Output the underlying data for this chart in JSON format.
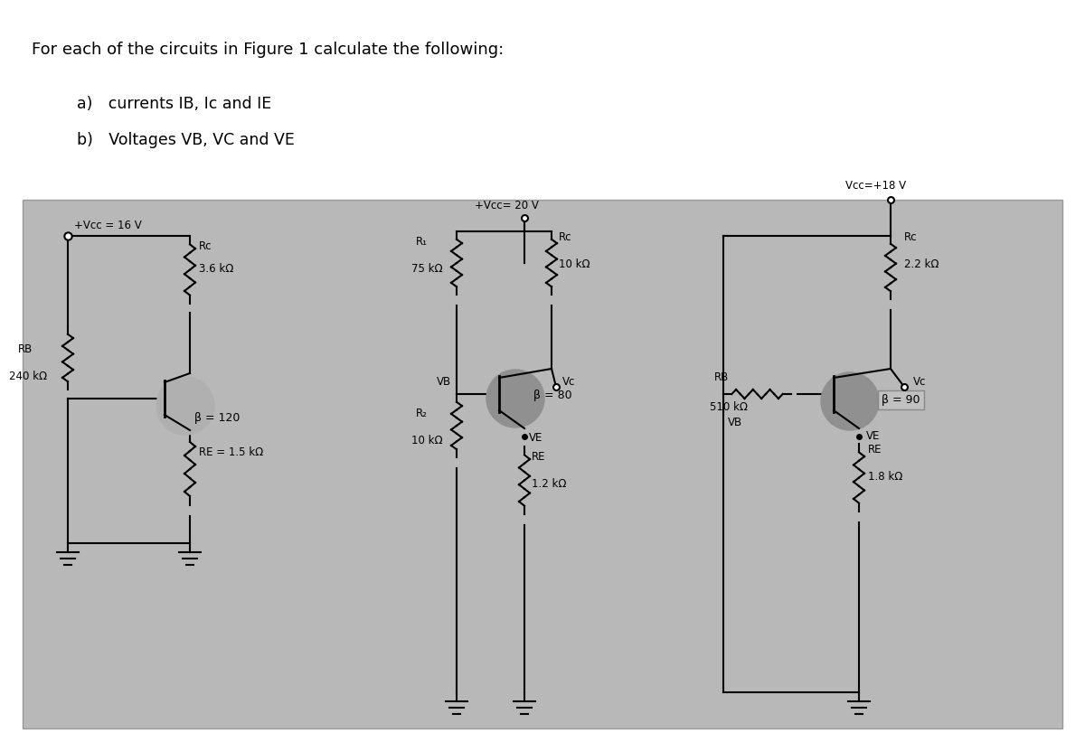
{
  "title_text": "For each of the circuits in Figure 1 calculate the following:",
  "item_a": "a) currents IB, Ic and IE",
  "item_b": "b) Voltages VB, VC and VE",
  "bg_color": "#d0d0d0",
  "panel_bg": "#c8c8c8",
  "white_bg": "#ffffff",
  "circuit1": {
    "vcc": "+Vcc = 16 V",
    "rc_label": "Rc",
    "rc_val": "3.6 kΩ",
    "rb_label": "RB",
    "rb_val": "240 kΩ",
    "re_label": "RE = 1.5 kΩ",
    "beta": "β = 120"
  },
  "circuit2": {
    "vcc": "+Vcc= 20 V",
    "r1_label": "R₁",
    "r1_val": "75 kΩ",
    "rc_label": "Rc",
    "rc_val": "10 kΩ",
    "r2_label": "R₂",
    "r2_val": "10 kΩ",
    "re_label": "RE",
    "re_val": "1.2 kΩ",
    "vb_label": "VB",
    "vc_label": "Vc",
    "ve_label": "VE",
    "beta": "β = 80"
  },
  "circuit3": {
    "vcc": "Vcc=+18 V",
    "rb_label": "RB",
    "rb_val": "510 kΩ",
    "rc_label": "Rc",
    "rc_val": "2.2 kΩ",
    "re_label": "RE",
    "re_val": "1.8 kΩ",
    "vb_label": "VB",
    "vc_label": "Vc",
    "ve_label": "VE",
    "beta": "β = 90"
  }
}
